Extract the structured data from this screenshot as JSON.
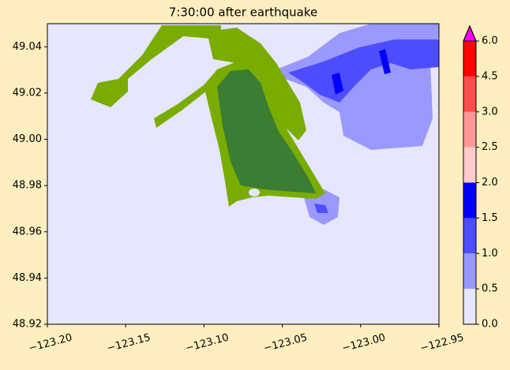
{
  "chart_data": {
    "type": "map",
    "title": "7:30:00 after earthquake",
    "xlim": [
      -123.2,
      -122.95
    ],
    "xticks": [
      {
        "value": -123.2,
        "label": "−123.20"
      },
      {
        "value": -123.15,
        "label": "−123.15"
      },
      {
        "value": -123.1,
        "label": "−123.10"
      },
      {
        "value": -123.05,
        "label": "−123.05"
      },
      {
        "value": -123.0,
        "label": "−123.00"
      },
      {
        "value": -122.95,
        "label": "−122.95"
      }
    ],
    "ylim": [
      48.92,
      49.05
    ],
    "yticks": [
      48.92,
      48.94,
      48.96,
      48.98,
      {
        "value": 49.0,
        "label": "49.00"
      },
      49.02,
      49.04
    ],
    "colorbar": {
      "levels": [
        {
          "value": 0,
          "label": "0.0"
        },
        0.5,
        {
          "value": 1,
          "label": "1.0"
        },
        1.5,
        {
          "value": 2,
          "label": "2.0"
        },
        2.5,
        {
          "value": 3,
          "label": "3.0"
        },
        4.5,
        {
          "value": 6,
          "label": "6.0"
        }
      ],
      "colors": [
        "#e6e6ff",
        "#9999ff",
        "#4d4dff",
        "#0000ff",
        "#ffcccc",
        "#ff9999",
        "#ff4d4d",
        "#ff0000"
      ],
      "extend_color": "#ff00ff"
    }
  }
}
